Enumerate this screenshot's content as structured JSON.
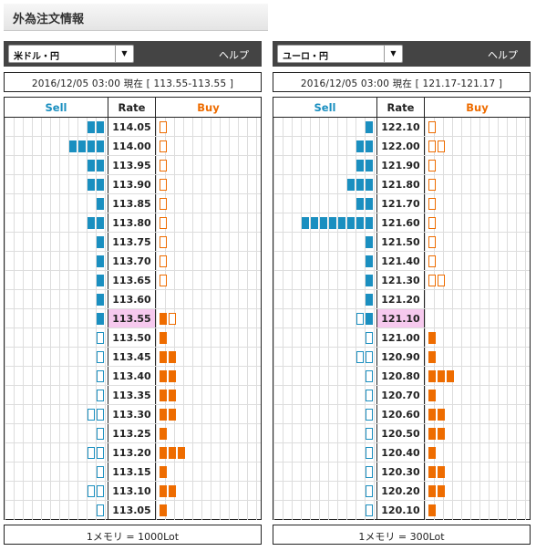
{
  "page_title": "外為注文情報",
  "panels": [
    {
      "pair_select": "米ドル・円",
      "help_label": "ヘルプ",
      "info": "2016/12/05  03:00 現在 [ 113.55-113.55 ]",
      "headers": {
        "sell": "Sell",
        "rate": "Rate",
        "buy": "Buy"
      },
      "footer": "1メモリ = 1000Lot",
      "rows": [
        {
          "rate": "114.05",
          "sell": 2,
          "sell_partial": false,
          "buy": 0,
          "buy_partial": true
        },
        {
          "rate": "114.00",
          "sell": 4,
          "sell_partial": false,
          "buy": 0,
          "buy_partial": true
        },
        {
          "rate": "113.95",
          "sell": 2,
          "sell_partial": false,
          "buy": 0,
          "buy_partial": true
        },
        {
          "rate": "113.90",
          "sell": 2,
          "sell_partial": false,
          "buy": 0,
          "buy_partial": true
        },
        {
          "rate": "113.85",
          "sell": 1,
          "sell_partial": false,
          "buy": 0,
          "buy_partial": true
        },
        {
          "rate": "113.80",
          "sell": 2,
          "sell_partial": false,
          "buy": 0,
          "buy_partial": true
        },
        {
          "rate": "113.75",
          "sell": 1,
          "sell_partial": false,
          "buy": 0,
          "buy_partial": true
        },
        {
          "rate": "113.70",
          "sell": 1,
          "sell_partial": false,
          "buy": 0,
          "buy_partial": true
        },
        {
          "rate": "113.65",
          "sell": 1,
          "sell_partial": false,
          "buy": 0,
          "buy_partial": true
        },
        {
          "rate": "113.60",
          "sell": 1,
          "sell_partial": false,
          "buy": 0,
          "buy_partial": false
        },
        {
          "rate": "113.55",
          "sell": 1,
          "sell_partial": false,
          "buy": 1,
          "buy_partial": true,
          "current": true
        },
        {
          "rate": "113.50",
          "sell": 0,
          "sell_partial": true,
          "buy": 1,
          "buy_partial": false
        },
        {
          "rate": "113.45",
          "sell": 0,
          "sell_partial": true,
          "buy": 2,
          "buy_partial": false
        },
        {
          "rate": "113.40",
          "sell": 0,
          "sell_partial": true,
          "buy": 2,
          "buy_partial": false
        },
        {
          "rate": "113.35",
          "sell": 0,
          "sell_partial": true,
          "buy": 2,
          "buy_partial": false
        },
        {
          "rate": "113.30",
          "sell": 0,
          "sell_partial": true,
          "sell_empty": 2,
          "buy": 2,
          "buy_partial": false
        },
        {
          "rate": "113.25",
          "sell": 0,
          "sell_partial": true,
          "buy": 1,
          "buy_partial": false
        },
        {
          "rate": "113.20",
          "sell": 0,
          "sell_partial": true,
          "sell_empty": 2,
          "buy": 3,
          "buy_partial": false
        },
        {
          "rate": "113.15",
          "sell": 0,
          "sell_partial": true,
          "buy": 1,
          "buy_partial": false
        },
        {
          "rate": "113.10",
          "sell": 0,
          "sell_partial": true,
          "sell_empty": 2,
          "buy": 2,
          "buy_partial": false
        },
        {
          "rate": "113.05",
          "sell": 0,
          "sell_partial": true,
          "buy": 1,
          "buy_partial": false
        }
      ]
    },
    {
      "pair_select": "ユーロ・円",
      "help_label": "ヘルプ",
      "info": "2016/12/05  03:00 現在 [ 121.17-121.17 ]",
      "headers": {
        "sell": "Sell",
        "rate": "Rate",
        "buy": "Buy"
      },
      "footer": "1メモリ = 300Lot",
      "rows": [
        {
          "rate": "122.10",
          "sell": 1,
          "sell_partial": false,
          "buy": 0,
          "buy_partial": true
        },
        {
          "rate": "122.00",
          "sell": 2,
          "sell_partial": false,
          "buy": 0,
          "buy_partial": true,
          "buy_empty": 2
        },
        {
          "rate": "121.90",
          "sell": 2,
          "sell_partial": false,
          "buy": 0,
          "buy_partial": true
        },
        {
          "rate": "121.80",
          "sell": 3,
          "sell_partial": false,
          "buy": 0,
          "buy_partial": true
        },
        {
          "rate": "121.70",
          "sell": 2,
          "sell_partial": false,
          "buy": 0,
          "buy_partial": true
        },
        {
          "rate": "121.60",
          "sell": 8,
          "sell_partial": false,
          "buy": 0,
          "buy_partial": true
        },
        {
          "rate": "121.50",
          "sell": 1,
          "sell_partial": false,
          "buy": 0,
          "buy_partial": true
        },
        {
          "rate": "121.40",
          "sell": 1,
          "sell_partial": false,
          "buy": 0,
          "buy_partial": true
        },
        {
          "rate": "121.30",
          "sell": 1,
          "sell_partial": false,
          "buy": 0,
          "buy_partial": true,
          "buy_empty": 2
        },
        {
          "rate": "121.20",
          "sell": 1,
          "sell_partial": false,
          "buy": 0,
          "buy_partial": false
        },
        {
          "rate": "121.10",
          "sell": 1,
          "sell_partial": true,
          "buy": 0,
          "buy_partial": false,
          "current": true
        },
        {
          "rate": "121.00",
          "sell": 0,
          "sell_partial": true,
          "buy": 1,
          "buy_partial": false
        },
        {
          "rate": "120.90",
          "sell": 0,
          "sell_partial": true,
          "sell_empty": 2,
          "buy": 1,
          "buy_partial": false
        },
        {
          "rate": "120.80",
          "sell": 0,
          "sell_partial": true,
          "buy": 3,
          "buy_partial": false
        },
        {
          "rate": "120.70",
          "sell": 0,
          "sell_partial": true,
          "buy": 1,
          "buy_partial": false
        },
        {
          "rate": "120.60",
          "sell": 0,
          "sell_partial": true,
          "buy": 2,
          "buy_partial": false
        },
        {
          "rate": "120.50",
          "sell": 0,
          "sell_partial": true,
          "buy": 2,
          "buy_partial": false
        },
        {
          "rate": "120.40",
          "sell": 0,
          "sell_partial": true,
          "buy": 1,
          "buy_partial": false
        },
        {
          "rate": "120.30",
          "sell": 0,
          "sell_partial": true,
          "buy": 2,
          "buy_partial": false
        },
        {
          "rate": "120.20",
          "sell": 0,
          "sell_partial": true,
          "buy": 2,
          "buy_partial": false
        },
        {
          "rate": "120.10",
          "sell": 0,
          "sell_partial": true,
          "buy": 1,
          "buy_partial": false
        }
      ]
    }
  ],
  "colors": {
    "sell": "#1a8fc0",
    "buy": "#ee6c00",
    "current_rate_bg": "#f6c9ee",
    "toolbar": "#444444"
  }
}
